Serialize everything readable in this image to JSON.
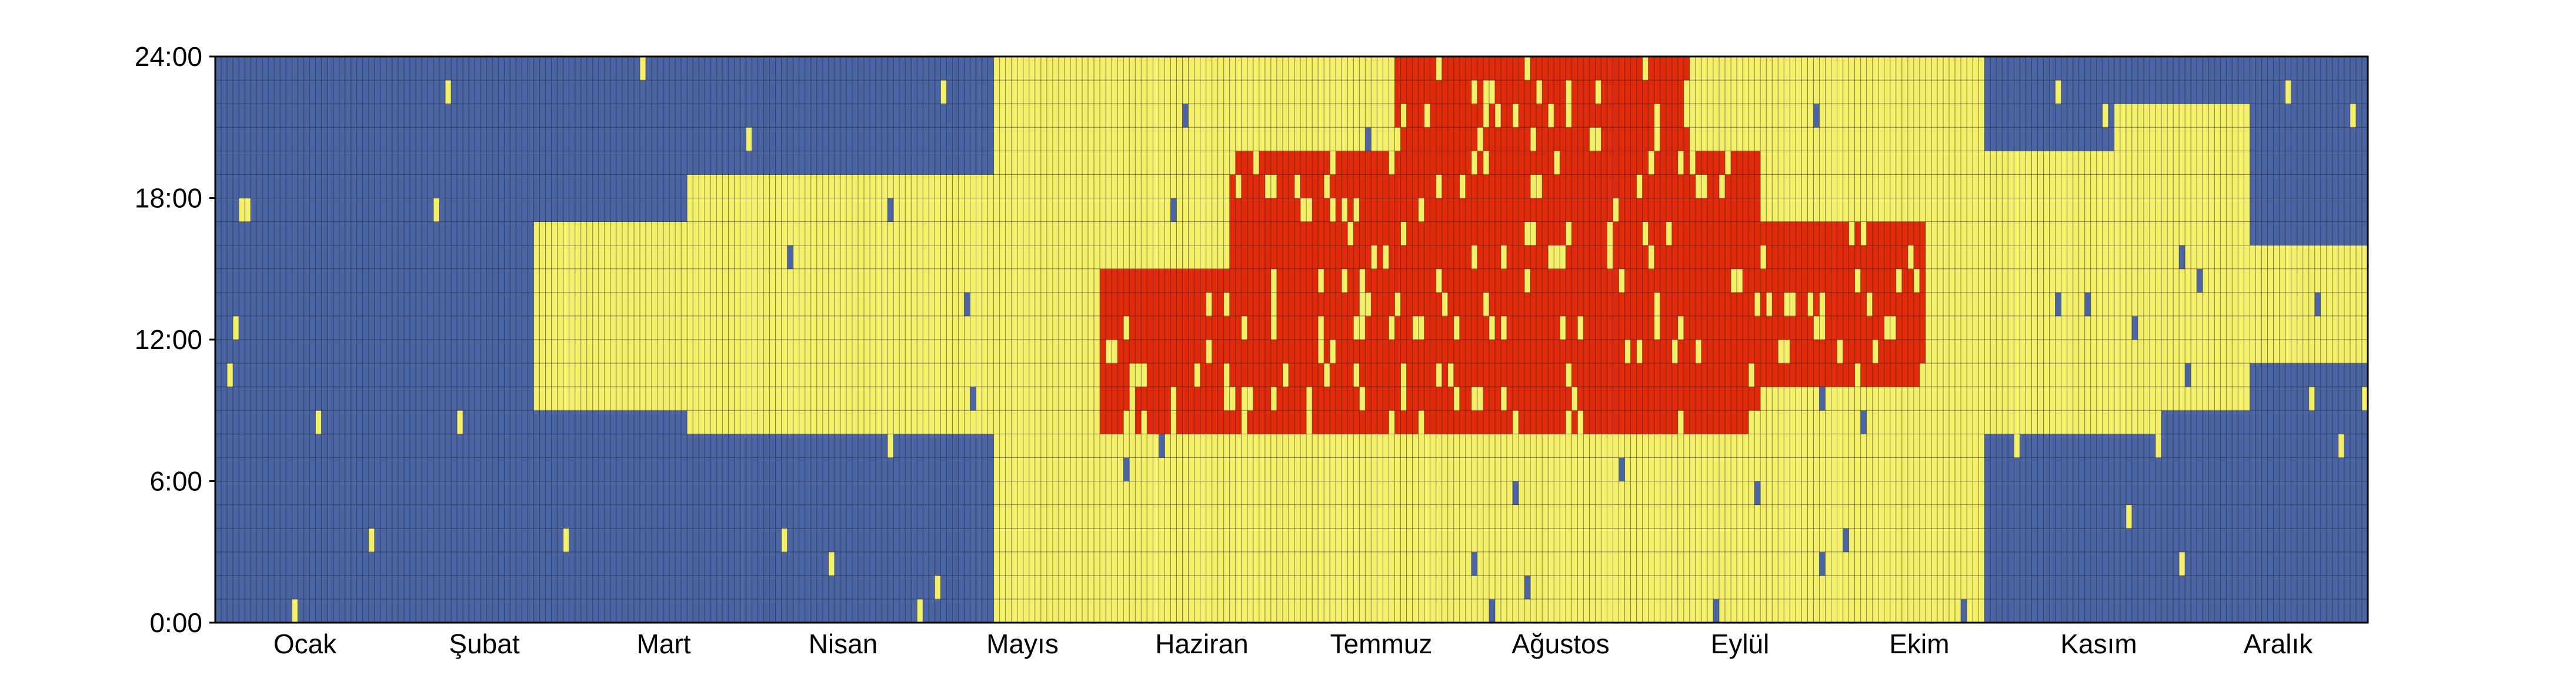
{
  "chart_data": {
    "type": "heatmap",
    "title": "",
    "xlabel": "",
    "ylabel": "",
    "x_tick_labels": [
      "Ocak",
      "Şubat",
      "Mart",
      "Nisan",
      "Mayıs",
      "Haziran",
      "Temmuz",
      "Ağustos",
      "Eylül",
      "Ekim",
      "Kasım",
      "Aralık"
    ],
    "y_tick_labels": [
      "0:00",
      "6:00",
      "12:00",
      "18:00",
      "24:00"
    ],
    "days": 365,
    "hours": 24,
    "legend": "none",
    "grid": true,
    "colors": {
      "cold": "#4a64a4",
      "comfortable": "#f5f06a",
      "hot": "#e02a0a",
      "grid": "#222222",
      "axis": "#000000"
    },
    "zones": [
      {
        "name": "hot-core",
        "level": 2,
        "day_from": 172,
        "day_to": 262,
        "hour_from": 8,
        "hour_to": 20
      },
      {
        "name": "hot-early",
        "level": 2,
        "day_from": 150,
        "day_to": 172,
        "hour_from": 8,
        "hour_to": 15
      },
      {
        "name": "hot-night",
        "level": 2,
        "day_from": 200,
        "day_to": 250,
        "hour_from": 20,
        "hour_to": 24
      },
      {
        "name": "hot-sept",
        "level": 2,
        "day_from": 262,
        "day_to": 290,
        "hour_from": 10,
        "hour_to": 17
      },
      {
        "name": "warm-summer",
        "level": 1,
        "day_from": 132,
        "day_to": 300,
        "hour_from": 0,
        "hour_to": 24
      },
      {
        "name": "warm-spring-day",
        "level": 1,
        "day_from": 80,
        "day_to": 132,
        "hour_from": 8,
        "hour_to": 19
      },
      {
        "name": "warm-march",
        "level": 1,
        "day_from": 54,
        "day_to": 80,
        "hour_from": 9,
        "hour_to": 17
      },
      {
        "name": "warm-oct",
        "level": 1,
        "day_from": 300,
        "day_to": 330,
        "hour_from": 8,
        "hour_to": 20
      },
      {
        "name": "warm-nov",
        "level": 1,
        "day_from": 322,
        "day_to": 345,
        "hour_from": 9,
        "hour_to": 22
      },
      {
        "name": "warm-dec",
        "level": 1,
        "day_from": 345,
        "day_to": 365,
        "hour_from": 11,
        "hour_to": 16
      }
    ]
  }
}
